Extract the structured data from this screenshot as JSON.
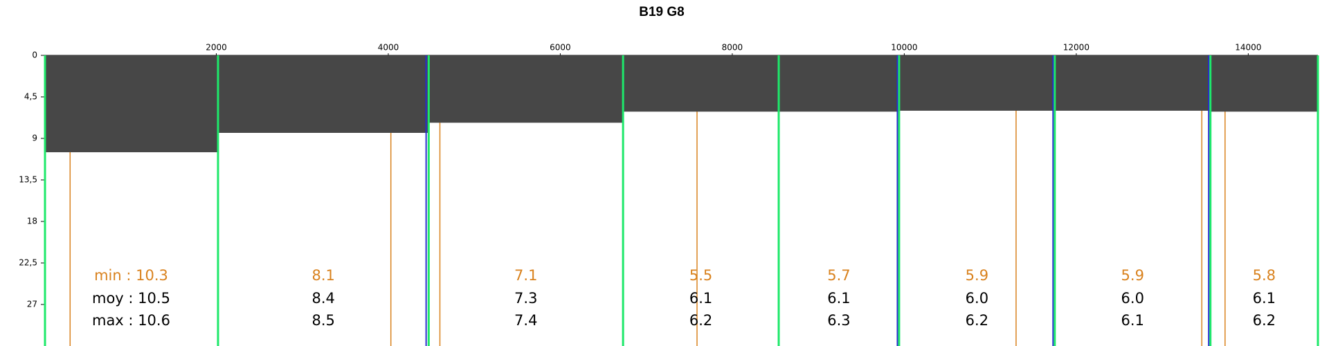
{
  "chart_data": {
    "type": "segment-area",
    "title": "B19 G8",
    "xlim": [
      0,
      14810
    ],
    "xticks": [
      2000,
      4000,
      6000,
      8000,
      10000,
      12000,
      14000
    ],
    "ylim": [
      0,
      31.5
    ],
    "y_inverted": true,
    "yticks": [
      0,
      {
        "value": 4.5,
        "label": "4,5"
      },
      9,
      {
        "value": 13.5,
        "label": "13,5"
      },
      18,
      {
        "value": 22.5,
        "label": "22,5"
      },
      27
    ],
    "area_color": "#474747",
    "boundaries": [
      0,
      2020,
      4470,
      6730,
      8540,
      9940,
      11750,
      13560,
      14810
    ],
    "boundary_color": "#1ee86a",
    "alt_boundaries": [
      4440,
      9920,
      11730,
      13540
    ],
    "alt_boundary_color": "#2b2bd0",
    "markers": [
      300,
      4030,
      4600,
      7590,
      11300,
      13460,
      13730
    ],
    "marker_color": "#d9821e",
    "stats": [
      {
        "name": "min :",
        "color": "#d9821e",
        "values": [
          10.3,
          8.1,
          7.1,
          5.5,
          5.7,
          5.9,
          5.9,
          5.8
        ]
      },
      {
        "name": "moy :",
        "color": "#000000",
        "values": [
          10.5,
          8.4,
          7.3,
          6.1,
          6.1,
          6.0,
          6.0,
          6.1
        ],
        "value_labels": [
          "10.5",
          "8.4",
          "7.3",
          "6.1",
          "6.1",
          "6.0",
          "6.0",
          "6.1"
        ]
      },
      {
        "name": "max :",
        "color": "#000000",
        "values": [
          10.6,
          8.5,
          7.4,
          6.2,
          6.3,
          6.2,
          6.1,
          6.2
        ]
      }
    ]
  }
}
